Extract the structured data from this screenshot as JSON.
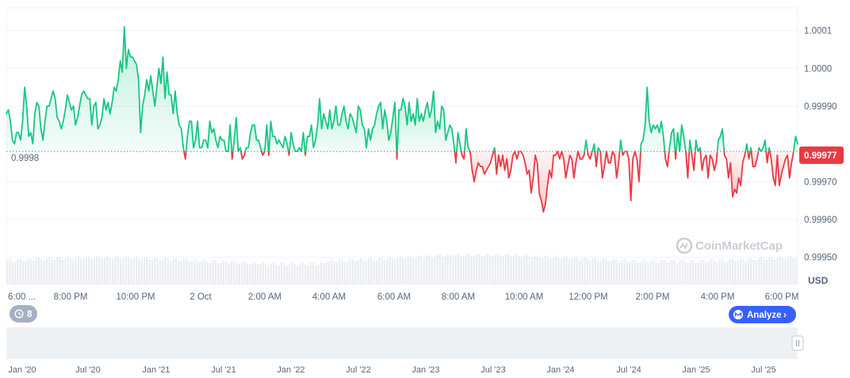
{
  "chart_data": {
    "type": "line",
    "ylim": [
      0.99943,
      1.00016
    ],
    "reference_value": 0.99978,
    "reference_label": "0.9998",
    "current_value": 0.99977,
    "current_label": "0.99977",
    "y_ticks": [
      {
        "value": 1.0001,
        "label": "1.0001"
      },
      {
        "value": 1.0,
        "label": "1.0000"
      },
      {
        "value": 0.9999,
        "label": "0.99990"
      },
      {
        "value": 0.9997,
        "label": "0.99970"
      },
      {
        "value": 0.9996,
        "label": "0.99960"
      },
      {
        "value": 0.9995,
        "label": "0.99950"
      }
    ],
    "y_unit": "USD",
    "x_ticks": [
      "6:00 ...",
      "8:00 PM",
      "10:00 PM",
      "2 Oct",
      "2:00 AM",
      "4:00 AM",
      "6:00 AM",
      "8:00 AM",
      "10:00 AM",
      "12:00 PM",
      "2:00 PM",
      "4:00 PM",
      "6:00 PM"
    ],
    "series": [
      {
        "values": [
          0.99988,
          0.99989,
          0.99986,
          0.99981,
          0.9998,
          0.99983,
          0.99983,
          0.99981,
          0.99986,
          0.99995,
          0.9999,
          0.99982,
          0.99983,
          0.9998,
          0.99988,
          0.99991,
          0.9999,
          0.99984,
          0.99981,
          0.99986,
          0.9999,
          0.9999,
          0.99992,
          0.99994,
          0.99992,
          0.99987,
          0.99986,
          0.99984,
          0.99986,
          0.99989,
          0.99993,
          0.99991,
          0.99989,
          0.9999,
          0.99985,
          0.99987,
          0.9999,
          0.99993,
          0.99994,
          0.99993,
          0.99992,
          0.99992,
          0.99985,
          0.9999,
          0.99991,
          0.99984,
          0.99985,
          0.99987,
          0.99992,
          0.99989,
          0.99991,
          0.99988,
          0.99991,
          0.99995,
          0.99994,
          0.99997,
          1.00002,
          0.99999,
          1.00011,
          1.0,
          1.00005,
          1.00003,
          1.00003,
          1.00002,
          1.00001,
          0.99997,
          0.99983,
          0.9999,
          0.99993,
          0.99997,
          0.99994,
          0.99998,
          0.99994,
          0.9999,
          0.99995,
          1.0,
          0.99996,
          1.00003,
          0.99992,
          0.99999,
          0.99993,
          0.99993,
          0.99988,
          0.99994,
          0.99988,
          0.99985,
          0.99984,
          0.99979,
          0.99976,
          0.99982,
          0.99986,
          0.99986,
          0.99979,
          0.99981,
          0.99986,
          0.99979,
          0.99979,
          0.99981,
          0.99981,
          0.99979,
          0.99986,
          0.99983,
          0.99984,
          0.99981,
          0.99979,
          0.99982,
          0.99981,
          0.99981,
          0.99978,
          0.99978,
          0.99985,
          0.99976,
          0.99981,
          0.99987,
          0.99978,
          0.99979,
          0.99976,
          0.99977,
          0.99979,
          0.99979,
          0.99983,
          0.99985,
          0.99985,
          0.99981,
          0.99981,
          0.99979,
          0.99977,
          0.99978,
          0.99985,
          0.99977,
          0.99986,
          0.99982,
          0.99982,
          0.9998,
          0.99981,
          0.9998,
          0.99979,
          0.99982,
          0.9998,
          0.99977,
          0.99983,
          0.9998,
          0.99978,
          0.99978,
          0.99979,
          0.99978,
          0.99983,
          0.99977,
          0.99982,
          0.99982,
          0.99985,
          0.99979,
          0.99981,
          0.99985,
          0.99992,
          0.99984,
          0.99988,
          0.99986,
          0.99984,
          0.99989,
          0.99984,
          0.99986,
          0.9999,
          0.99985,
          0.99985,
          0.99988,
          0.9999,
          0.99986,
          0.99984,
          0.99988,
          0.99987,
          0.99985,
          0.99983,
          0.9999,
          0.99989,
          0.99985,
          0.99984,
          0.99979,
          0.99984,
          0.99981,
          0.99984,
          0.99985,
          0.99988,
          0.9999,
          0.99991,
          0.99984,
          0.99989,
          0.99986,
          0.99981,
          0.99983,
          0.99987,
          0.99991,
          0.99976,
          0.99989,
          0.99989,
          0.99992,
          0.9999,
          0.99985,
          0.99991,
          0.99986,
          0.99988,
          0.99985,
          0.99992,
          0.99986,
          0.99988,
          0.99986,
          0.99989,
          0.99991,
          0.99987,
          0.99989,
          0.99994,
          0.99983,
          0.99986,
          0.99984,
          0.9999,
          0.99989,
          0.99981,
          0.99983,
          0.99985,
          0.99984,
          0.9998,
          0.99975,
          0.99983,
          0.9998,
          0.99977,
          0.99976,
          0.99984,
          0.99979,
          0.99978,
          0.99973,
          0.9997,
          0.99973,
          0.99975,
          0.99974,
          0.99974,
          0.99972,
          0.99973,
          0.99974,
          0.99975,
          0.99977,
          0.99979,
          0.99972,
          0.99977,
          0.99974,
          0.99977,
          0.99973,
          0.99976,
          0.99971,
          0.99973,
          0.99977,
          0.99978,
          0.99976,
          0.99978,
          0.99978,
          0.99977,
          0.99975,
          0.99972,
          0.99973,
          0.99967,
          0.99971,
          0.99977,
          0.99975,
          0.99967,
          0.99965,
          0.99962,
          0.99964,
          0.99969,
          0.99973,
          0.99971,
          0.99977,
          0.99977,
          0.99978,
          0.99976,
          0.99978,
          0.99976,
          0.99971,
          0.99974,
          0.99977,
          0.99976,
          0.99971,
          0.99975,
          0.99978,
          0.99976,
          0.99976,
          0.99977,
          0.99981,
          0.99977,
          0.99976,
          0.99978,
          0.9998,
          0.99974,
          0.99979,
          0.99978,
          0.99971,
          0.99974,
          0.99978,
          0.99975,
          0.99975,
          0.99978,
          0.99977,
          0.99971,
          0.99975,
          0.99981,
          0.99977,
          0.99978,
          0.99978,
          0.99976,
          0.99965,
          0.99976,
          0.99978,
          0.99976,
          0.9997,
          0.9998,
          0.99981,
          0.99985,
          0.99995,
          0.99986,
          0.99983,
          0.99985,
          0.99984,
          0.99985,
          0.99983,
          0.99986,
          0.99982,
          0.99976,
          0.99974,
          0.99979,
          0.99983,
          0.99984,
          0.99976,
          0.99983,
          0.99978,
          0.99985,
          0.99982,
          0.99978,
          0.99971,
          0.99981,
          0.99977,
          0.99973,
          0.99981,
          0.99978,
          0.99979,
          0.99973,
          0.99976,
          0.99977,
          0.99971,
          0.99977,
          0.99976,
          0.99973,
          0.99975,
          0.99981,
          0.99982,
          0.99984,
          0.99977,
          0.99976,
          0.99971,
          0.99975,
          0.99966,
          0.99968,
          0.99967,
          0.99971,
          0.99969,
          0.99975,
          0.99977,
          0.9998,
          0.99976,
          0.99979,
          0.99974,
          0.99974,
          0.99976,
          0.99979,
          0.99978,
          0.99979,
          0.99981,
          0.99975,
          0.99979,
          0.99976,
          0.99971,
          0.99969,
          0.99977,
          0.99969,
          0.99972,
          0.99974,
          0.99976,
          0.99977,
          0.99971,
          0.99975,
          0.99978,
          0.99982,
          0.9998
        ]
      }
    ],
    "watermark": "CoinMarketCap",
    "navigator": {
      "x_ticks": [
        "Jan '20",
        "Jul '20",
        "Jan '21",
        "Jul '21",
        "Jan '22",
        "Jul '22",
        "Jan '23",
        "Jul '23",
        "Jan '24",
        "Jul '24",
        "Jan '25",
        "Jul '25"
      ]
    }
  },
  "controls": {
    "history_count": "8",
    "analyze_label": "Analyze",
    "analyze_chevron": "›"
  },
  "colors": {
    "up": "#16c784",
    "down": "#ea3943",
    "badge": "#ea3943",
    "analyze": "#3861fb"
  }
}
